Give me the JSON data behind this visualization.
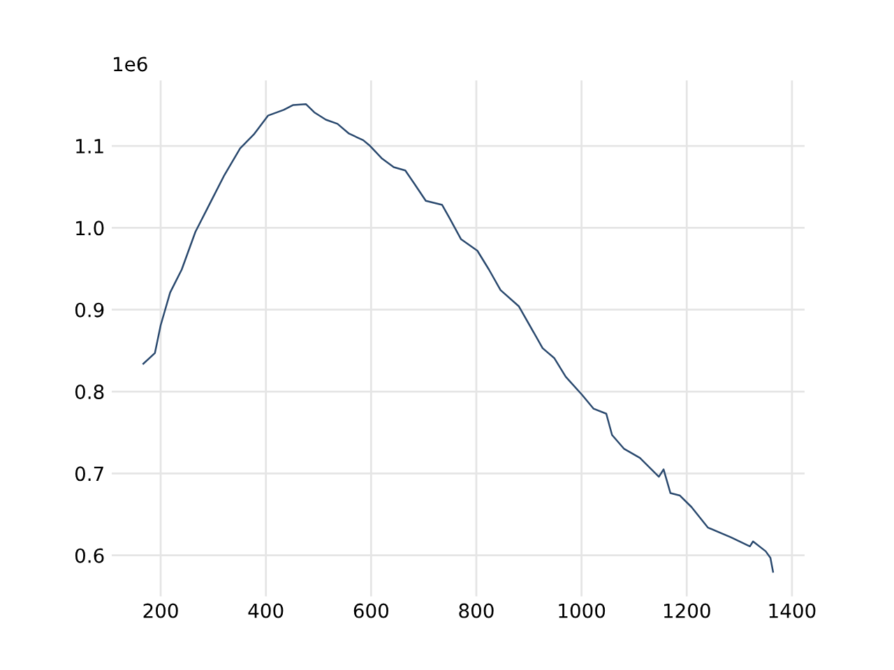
{
  "chart_data": {
    "type": "line",
    "x": [
      167,
      189,
      200,
      218,
      240,
      266,
      293,
      320,
      351,
      377,
      404,
      434,
      452,
      476,
      492,
      514,
      536,
      558,
      585,
      598,
      620,
      643,
      665,
      682,
      704,
      735,
      749,
      771,
      802,
      824,
      846,
      881,
      926,
      948,
      970,
      1001,
      1023,
      1047,
      1058,
      1081,
      1111,
      1147,
      1156,
      1169,
      1187,
      1209,
      1240,
      1284,
      1320,
      1326,
      1350,
      1359,
      1364
    ],
    "series": [
      {
        "color": "#2b4a6f",
        "values": [
          0.834,
          0.847,
          0.881,
          0.921,
          0.949,
          0.995,
          1.029,
          1.063,
          1.097,
          1.114,
          1.137,
          1.144,
          1.15,
          1.151,
          1.141,
          1.132,
          1.127,
          1.115,
          1.107,
          1.1,
          1.085,
          1.074,
          1.07,
          1.054,
          1.033,
          1.028,
          1.012,
          0.986,
          0.972,
          0.949,
          0.924,
          0.904,
          0.853,
          0.841,
          0.818,
          0.796,
          0.779,
          0.773,
          0.747,
          0.73,
          0.719,
          0.696,
          0.705,
          0.676,
          0.673,
          0.659,
          0.634,
          0.622,
          0.611,
          0.617,
          0.605,
          0.597,
          0.58
        ]
      }
    ],
    "xlim": [
      107,
      1424
    ],
    "ylim": [
      0.55,
      1.18
    ],
    "xticks": [
      200,
      400,
      600,
      800,
      1000,
      1200,
      1400
    ],
    "yticks": [
      0.6,
      0.7,
      0.8,
      0.9,
      {
        "value": 1,
        "label": "1.0"
      },
      1.1
    ],
    "annotations": [
      "1e6"
    ],
    "grid": true,
    "marker": "none",
    "line_style": "solid"
  }
}
